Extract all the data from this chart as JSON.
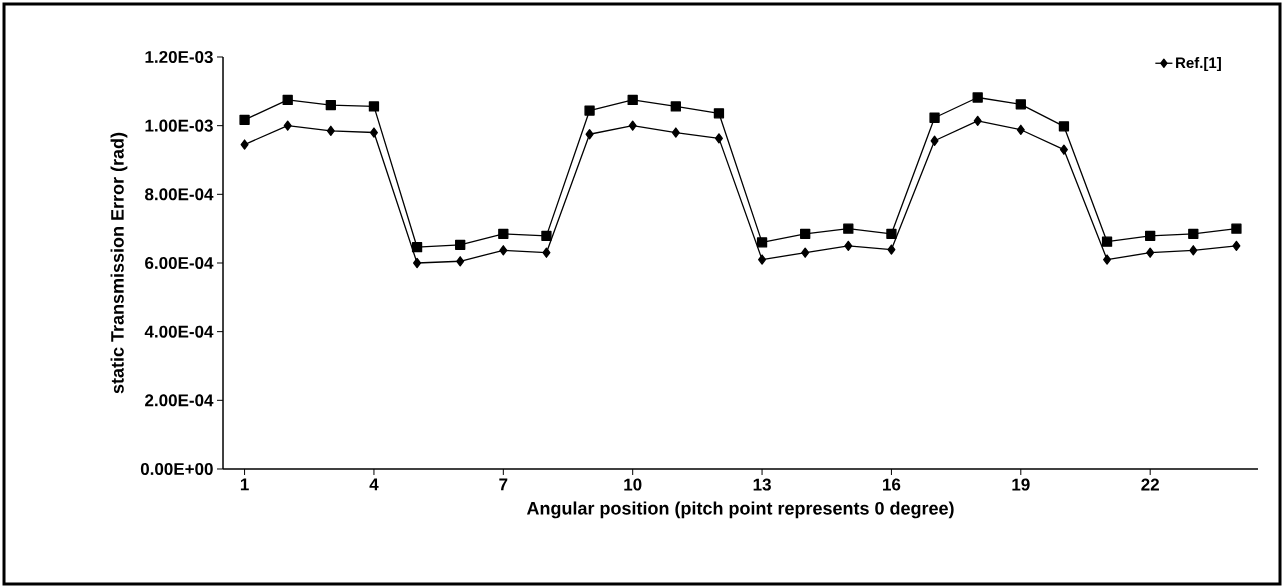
{
  "chart_data": {
    "type": "line",
    "xlabel": "Angular position (pitch point represents 0 degree)",
    "ylabel": "static Transmission Error (rad)",
    "x": [
      1,
      2,
      3,
      4,
      5,
      6,
      7,
      8,
      9,
      10,
      11,
      12,
      13,
      14,
      15,
      16,
      17,
      18,
      19,
      20,
      21,
      22,
      23,
      24
    ],
    "series": [
      {
        "name": "Ref.[1]",
        "color": "#000000",
        "marker": "diamond",
        "values": [
          0.000945,
          0.001,
          0.000985,
          0.00098,
          0.0006,
          0.000605,
          0.000637,
          0.00063,
          0.000975,
          0.001,
          0.00098,
          0.000963,
          0.00061,
          0.00063,
          0.00065,
          0.000639,
          0.000956,
          0.001014,
          0.000988,
          0.00093,
          0.00061,
          0.00063,
          0.000637,
          0.00065
        ]
      },
      {
        "color": "#000000",
        "marker": "square",
        "values": [
          0.001017,
          0.001075,
          0.00106,
          0.001056,
          0.000646,
          0.000653,
          0.000685,
          0.000679,
          0.001044,
          0.001075,
          0.001056,
          0.001036,
          0.00066,
          0.000685,
          0.0007,
          0.000685,
          0.001023,
          0.001082,
          0.001062,
          0.000998,
          0.000662,
          0.000679,
          0.000685,
          0.0007
        ]
      }
    ],
    "xlim": [
      0.5,
      24.5
    ],
    "ylim": [
      0,
      0.0012
    ],
    "xticks": [
      1,
      4,
      7,
      10,
      13,
      16,
      19,
      22
    ],
    "yticks": [
      {
        "value": 0,
        "label": "0.00E+00"
      },
      {
        "value": 0.0002,
        "label": "2.00E-04"
      },
      {
        "value": 0.0004,
        "label": "4.00E-04"
      },
      {
        "value": 0.0006,
        "label": "6.00E-04"
      },
      {
        "value": 0.0008,
        "label": "8.00E-04"
      },
      {
        "value": 0.001,
        "label": "1.00E-03"
      },
      {
        "value": 0.0012,
        "label": "1.20E-03"
      }
    ],
    "grid": false,
    "legend": "top right",
    "line_style": "solid"
  }
}
